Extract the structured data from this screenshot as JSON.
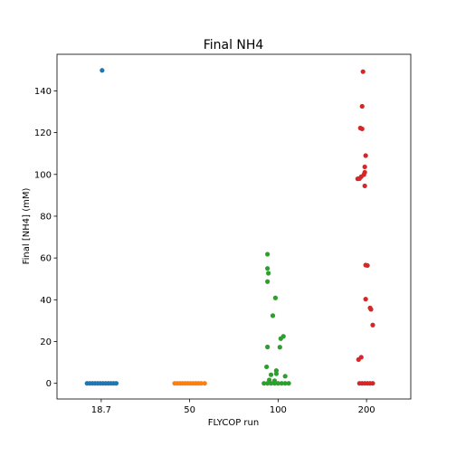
{
  "chart_data": {
    "type": "scatter",
    "title": "Final NH4",
    "xlabel": "FLYCOP run",
    "ylabel": "Final [NH4] (mM)",
    "categories": [
      "18.7",
      "50",
      "100",
      "200"
    ],
    "ylim": [
      -7.5,
      157.5
    ],
    "yticks": [
      0,
      20,
      40,
      60,
      80,
      100,
      120,
      140
    ],
    "grid": false,
    "series": [
      {
        "category": "18.7",
        "color": "#1f77b4",
        "points": [
          [
            0.01,
            149.8
          ],
          [
            -0.16,
            0
          ],
          [
            -0.13,
            0
          ],
          [
            -0.1,
            0
          ],
          [
            -0.07,
            0
          ],
          [
            -0.04,
            0
          ],
          [
            -0.01,
            0
          ],
          [
            0.02,
            0
          ],
          [
            0.05,
            0
          ],
          [
            0.08,
            0
          ],
          [
            0.11,
            0
          ],
          [
            0.14,
            0
          ],
          [
            0.17,
            0
          ]
        ]
      },
      {
        "category": "50",
        "color": "#ff7f0e",
        "points": [
          [
            -0.17,
            0
          ],
          [
            -0.14,
            0
          ],
          [
            -0.11,
            0
          ],
          [
            -0.08,
            0
          ],
          [
            -0.05,
            0
          ],
          [
            -0.02,
            0
          ],
          [
            0.01,
            0
          ],
          [
            0.04,
            0
          ],
          [
            0.07,
            0
          ],
          [
            0.1,
            0
          ],
          [
            0.13,
            0
          ],
          [
            0.17,
            0
          ]
        ]
      },
      {
        "category": "100",
        "color": "#2ca02c",
        "points": [
          [
            -0.12,
            61.8
          ],
          [
            -0.12,
            55
          ],
          [
            -0.11,
            52.7
          ],
          [
            -0.12,
            48.7
          ],
          [
            -0.03,
            40.9
          ],
          [
            -0.06,
            32.4
          ],
          [
            0.06,
            22.5
          ],
          [
            0.03,
            21.4
          ],
          [
            0.02,
            17.3
          ],
          [
            -0.12,
            17.4
          ],
          [
            -0.13,
            7.9
          ],
          [
            -0.02,
            6.1
          ],
          [
            -0.02,
            4.6
          ],
          [
            -0.08,
            4.1
          ],
          [
            0.08,
            3.4
          ],
          [
            -0.1,
            1.6
          ],
          [
            -0.04,
            1.2
          ],
          [
            -0.16,
            0
          ],
          [
            -0.12,
            0
          ],
          [
            -0.08,
            0
          ],
          [
            -0.04,
            0
          ],
          [
            0,
            0
          ],
          [
            0.04,
            0
          ],
          [
            0.08,
            0
          ],
          [
            0.12,
            0
          ]
        ]
      },
      {
        "category": "200",
        "color": "#d62728",
        "points": [
          [
            -0.04,
            149.2
          ],
          [
            -0.05,
            132.6
          ],
          [
            -0.07,
            122.2
          ],
          [
            -0.05,
            121.8
          ],
          [
            -0.01,
            109
          ],
          [
            -0.02,
            103.6
          ],
          [
            -0.02,
            101
          ],
          [
            -0.03,
            99.9
          ],
          [
            -0.06,
            98.9
          ],
          [
            -0.08,
            98
          ],
          [
            -0.1,
            97.9
          ],
          [
            -0.02,
            94.5
          ],
          [
            -0.01,
            56.6
          ],
          [
            0.01,
            56.4
          ],
          [
            -0.01,
            40.3
          ],
          [
            0.04,
            36.1
          ],
          [
            0.05,
            35.4
          ],
          [
            0.07,
            27.9
          ],
          [
            -0.06,
            12.5
          ],
          [
            -0.09,
            11.4
          ],
          [
            -0.08,
            0
          ],
          [
            -0.05,
            0
          ],
          [
            -0.02,
            0
          ],
          [
            0.01,
            0
          ],
          [
            0.04,
            0
          ],
          [
            0.07,
            0
          ]
        ]
      }
    ]
  }
}
